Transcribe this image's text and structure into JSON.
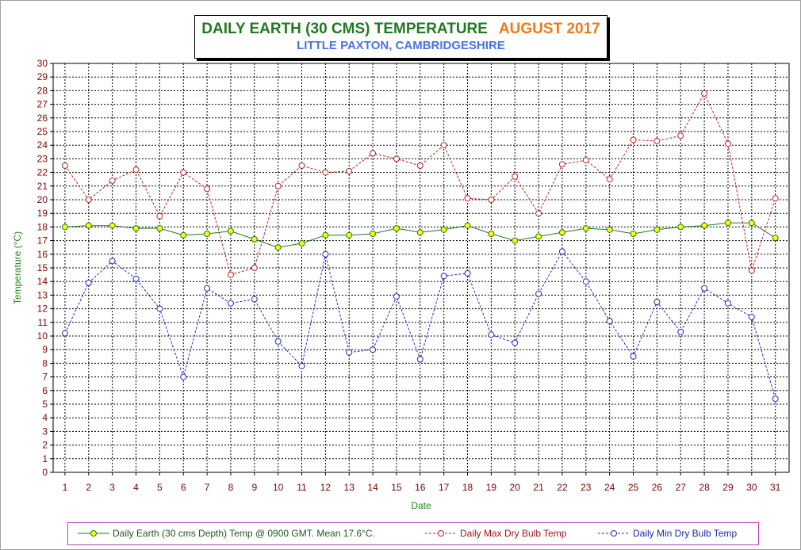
{
  "title": {
    "main": "DAILY EARTH (30 CMS) TEMPERATURE",
    "month": "AUGUST 2017",
    "subtitle": "LITTLE PAXTON, CAMBRIDGESHIRE"
  },
  "colors": {
    "earth_line": "#1e7a1e",
    "earth_marker": "#ffff00",
    "max_line": "#c02020",
    "min_line": "#2030c0",
    "tick_labels": "#800000",
    "ylabel": "#1e8a1e",
    "xlabel": "#1e8a1e"
  },
  "chart_data": {
    "type": "line",
    "xlabel": "Date",
    "ylabel": "Temperature (°C)",
    "ylim": [
      0,
      30
    ],
    "ytick_step": 1,
    "grid": true,
    "legend_position": "bottom",
    "categories": [
      "1",
      "2",
      "3",
      "4",
      "5",
      "6",
      "7",
      "8",
      "9",
      "10",
      "11",
      "12",
      "13",
      "14",
      "15",
      "16",
      "17",
      "18",
      "19",
      "20",
      "21",
      "22",
      "23",
      "24",
      "25",
      "26",
      "27",
      "28",
      "29",
      "30",
      "31"
    ],
    "series": [
      {
        "name": "Daily Earth (30 cms Depth) Temp @ 0900 GMT. Mean 17.6°C.",
        "style": "solid",
        "values": [
          18.0,
          18.1,
          18.1,
          17.9,
          17.9,
          17.4,
          17.5,
          17.7,
          17.1,
          16.5,
          16.8,
          17.4,
          17.4,
          17.5,
          17.9,
          17.6,
          17.8,
          18.1,
          17.5,
          17.0,
          17.3,
          17.6,
          17.9,
          17.8,
          17.5,
          17.8,
          18.0,
          18.1,
          18.3,
          18.3,
          17.2
        ]
      },
      {
        "name": "Daily Max Dry Bulb Temp",
        "style": "dashed",
        "values": [
          22.5,
          20.0,
          21.4,
          22.2,
          18.8,
          22.0,
          20.8,
          14.5,
          15.0,
          21.0,
          22.5,
          22.0,
          22.1,
          23.4,
          23.0,
          22.5,
          24.0,
          20.1,
          20.0,
          21.7,
          19.0,
          22.6,
          22.9,
          21.5,
          24.4,
          24.3,
          24.7,
          27.8,
          24.1,
          14.8,
          20.1
        ]
      },
      {
        "name": "Daily Min Dry Bulb Temp",
        "style": "dashed",
        "values": [
          10.2,
          13.9,
          15.5,
          14.2,
          12.0,
          7.0,
          13.5,
          12.4,
          12.7,
          9.6,
          7.8,
          16.0,
          8.8,
          9.0,
          12.9,
          8.3,
          14.4,
          14.6,
          10.1,
          9.5,
          13.1,
          16.2,
          14.0,
          11.1,
          8.5,
          12.5,
          10.3,
          13.5,
          12.4,
          11.4,
          5.4
        ]
      }
    ]
  }
}
